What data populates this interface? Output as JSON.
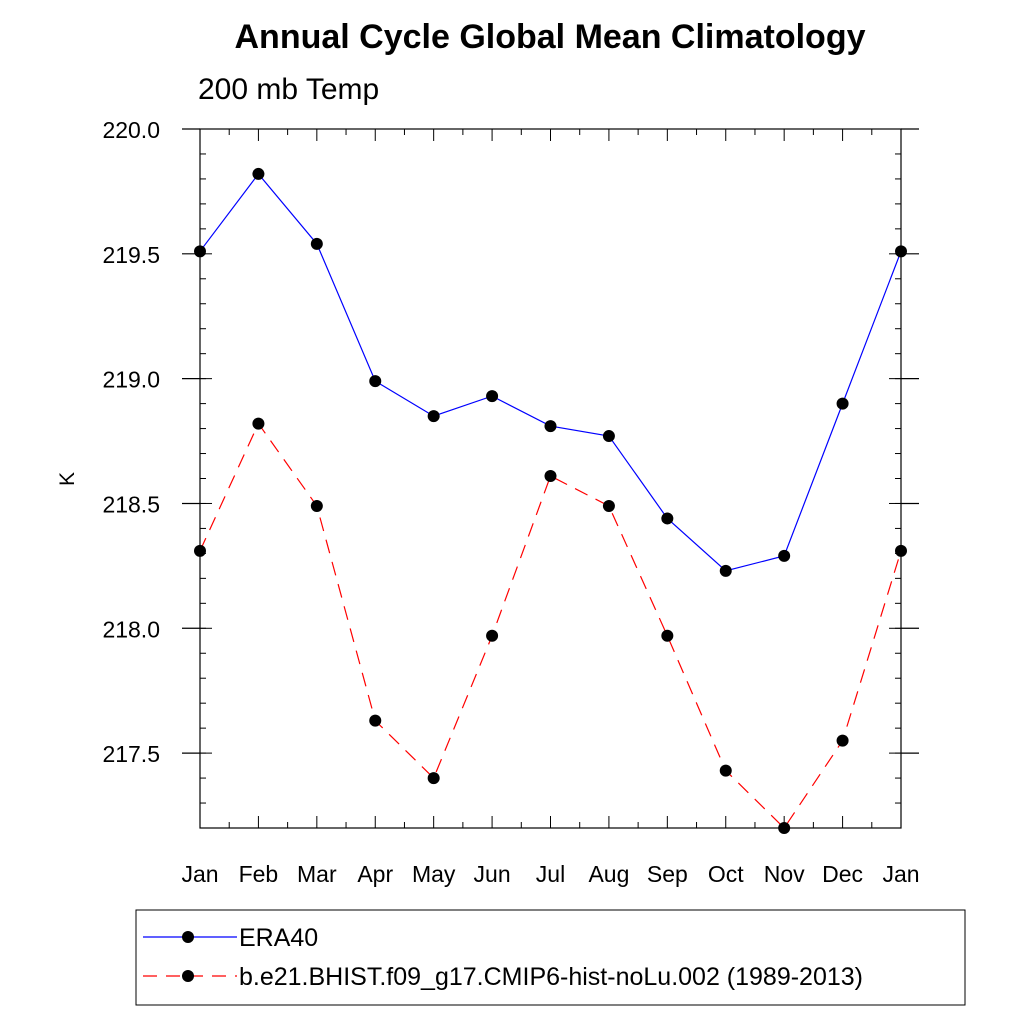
{
  "chart_data": {
    "type": "line",
    "title": "Annual Cycle Global Mean Climatology",
    "subtitle": "200 mb Temp",
    "xlabel": "",
    "ylabel": "K",
    "categories": [
      "Jan",
      "Feb",
      "Mar",
      "Apr",
      "May",
      "Jun",
      "Jul",
      "Aug",
      "Sep",
      "Oct",
      "Nov",
      "Dec",
      "Jan"
    ],
    "ylim": [
      217.2,
      220.0
    ],
    "yticks": [
      217.5,
      218.0,
      218.5,
      219.0,
      219.5,
      220.0
    ],
    "ytick_labels": [
      "217.5",
      "218.0",
      "218.5",
      "219.0",
      "219.5",
      "220.0"
    ],
    "grid": false,
    "legend_position": "bottom",
    "series": [
      {
        "name": "ERA40",
        "color": "#0000ff",
        "line_style": "solid",
        "marker": "filled-circle",
        "values": [
          219.51,
          219.82,
          219.54,
          218.99,
          218.85,
          218.93,
          218.81,
          218.77,
          218.44,
          218.23,
          218.29,
          218.9,
          219.51
        ]
      },
      {
        "name": "b.e21.BHIST.f09_g17.CMIP6-hist-noLu.002 (1989-2013)",
        "color": "#ff0000",
        "line_style": "dashed",
        "marker": "filled-circle",
        "values": [
          218.31,
          218.82,
          218.49,
          217.63,
          217.4,
          217.97,
          218.61,
          218.49,
          217.97,
          217.43,
          217.2,
          217.55,
          218.31
        ]
      }
    ]
  }
}
